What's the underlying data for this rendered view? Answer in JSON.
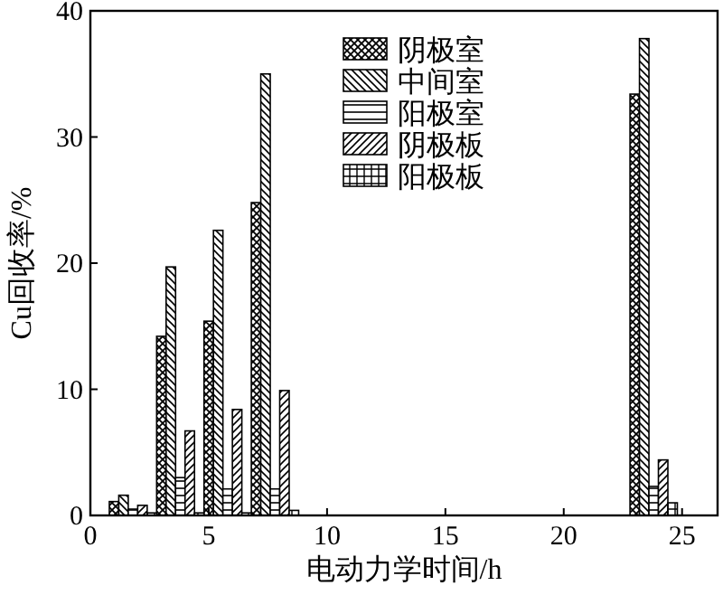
{
  "chart_data": {
    "type": "bar",
    "xlabel": "电动力学时间/h",
    "ylabel": "Cu回收率/%",
    "x": [
      1.8,
      3.8,
      5.8,
      7.8,
      23.8
    ],
    "series": [
      {
        "name": "阴极室",
        "color": "#000000",
        "values": [
          1.1,
          14.2,
          15.4,
          24.8,
          33.4
        ]
      },
      {
        "name": "中间室",
        "color": "#000000",
        "values": [
          1.6,
          19.7,
          22.6,
          35.0,
          37.8
        ]
      },
      {
        "name": "阳极室",
        "color": "#000000",
        "values": [
          0.5,
          3.0,
          2.1,
          2.1,
          2.3
        ]
      },
      {
        "name": "阴极板",
        "color": "#000000",
        "values": [
          0.8,
          6.7,
          8.4,
          9.9,
          4.4
        ]
      },
      {
        "name": "阳极板",
        "color": "#000000",
        "values": [
          0.2,
          0.2,
          0.2,
          0.4,
          1.0
        ]
      }
    ],
    "xlim": [
      0,
      26.5
    ],
    "ylim": [
      0,
      40
    ],
    "xticks": [
      0,
      5,
      10,
      15,
      20,
      25
    ],
    "yticks": [
      0,
      10,
      20,
      30,
      40
    ],
    "grid": false,
    "legend": "top"
  }
}
